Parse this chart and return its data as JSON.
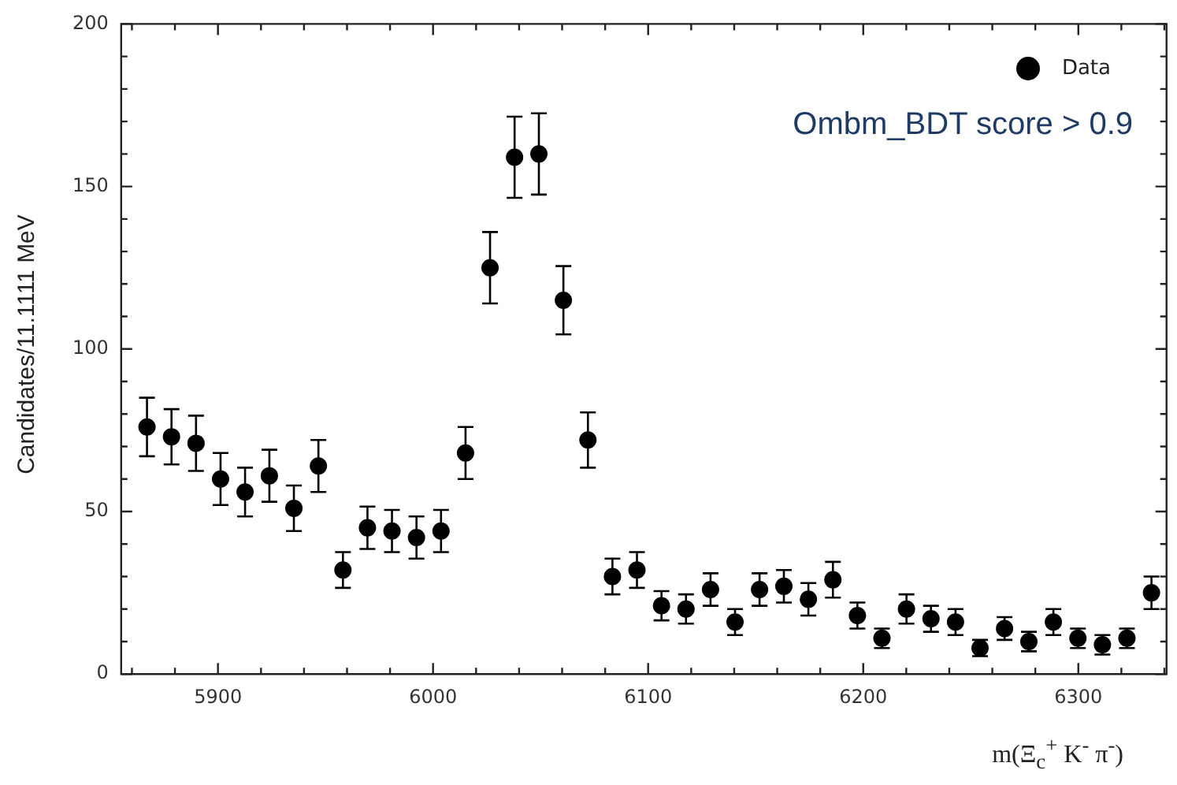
{
  "chart_data": {
    "type": "scatter",
    "xlabel": "m(Ξ$_{c}$$^{+}$ K$^{-}$ π$^{-}$)",
    "ylabel": "Candidates/11.1111 MeV",
    "annotations": [
      "Ombm_BDT score > 0.9"
    ],
    "x": [
      5867.0,
      5878.4,
      5889.8,
      5901.2,
      5912.6,
      5923.9,
      5935.3,
      5946.7,
      5958.1,
      5969.5,
      5980.9,
      5992.3,
      6003.7,
      6015.1,
      6026.5,
      6037.9,
      6049.2,
      6060.6,
      6072.0,
      6083.4,
      6094.8,
      6106.2,
      6117.6,
      6129.0,
      6140.4,
      6151.8,
      6163.1,
      6174.5,
      6185.9,
      6197.3,
      6208.7,
      6220.1,
      6231.5,
      6242.9,
      6254.3,
      6265.7,
      6277.0,
      6288.4,
      6299.8,
      6311.2,
      6322.6,
      6334.0
    ],
    "series": [
      {
        "name": "Data",
        "color": "#000000",
        "values": [
          76,
          73,
          71,
          60,
          56,
          61,
          51,
          64,
          32,
          45,
          44,
          42,
          44,
          68,
          125,
          159,
          160,
          115,
          72,
          30,
          32,
          21,
          20,
          26,
          16,
          26,
          27,
          23,
          29,
          18,
          11,
          20,
          17,
          16,
          8,
          14,
          10,
          16,
          11,
          9,
          11,
          25
        ],
        "errors": [
          9,
          8.5,
          8.5,
          8,
          7.5,
          8,
          7,
          8,
          5.5,
          6.5,
          6.5,
          6.5,
          6.5,
          8,
          11,
          12.5,
          12.5,
          10.5,
          8.5,
          5.5,
          5.5,
          4.5,
          4.5,
          5,
          4,
          5,
          5,
          5,
          5.5,
          4,
          3,
          4.5,
          4,
          4,
          2.5,
          3.5,
          3,
          4,
          3,
          3,
          3,
          5
        ]
      }
    ],
    "xlim": [
      5855,
      6341
    ],
    "ylim": [
      0,
      200
    ],
    "xticks": [
      {
        "value": 5860,
        "label": null
      },
      {
        "value": 5880,
        "label": null
      },
      5900,
      {
        "value": 5920,
        "label": null
      },
      {
        "value": 5940,
        "label": null
      },
      {
        "value": 5960,
        "label": null
      },
      {
        "value": 5980,
        "label": null
      },
      6000,
      {
        "value": 6020,
        "label": null
      },
      {
        "value": 6040,
        "label": null
      },
      {
        "value": 6060,
        "label": null
      },
      {
        "value": 6080,
        "label": null
      },
      6100,
      {
        "value": 6120,
        "label": null
      },
      {
        "value": 6140,
        "label": null
      },
      {
        "value": 6160,
        "label": null
      },
      {
        "value": 6180,
        "label": null
      },
      6200,
      {
        "value": 6220,
        "label": null
      },
      {
        "value": 6240,
        "label": null
      },
      {
        "value": 6260,
        "label": null
      },
      {
        "value": 6280,
        "label": null
      },
      6300,
      {
        "value": 6320,
        "label": null
      },
      {
        "value": 6340,
        "label": null
      }
    ],
    "yticks": [
      0,
      {
        "value": 10,
        "label": null
      },
      {
        "value": 20,
        "label": null
      },
      {
        "value": 30,
        "label": null
      },
      {
        "value": 40,
        "label": null
      },
      50,
      {
        "value": 60,
        "label": null
      },
      {
        "value": 70,
        "label": null
      },
      {
        "value": 80,
        "label": null
      },
      {
        "value": 90,
        "label": null
      },
      100,
      {
        "value": 110,
        "label": null
      },
      {
        "value": 120,
        "label": null
      },
      {
        "value": 130,
        "label": null
      },
      {
        "value": 140,
        "label": null
      },
      150,
      {
        "value": 160,
        "label": null
      },
      {
        "value": 170,
        "label": null
      },
      {
        "value": 180,
        "label": null
      },
      {
        "value": 190,
        "label": null
      },
      200
    ],
    "marker": "circle",
    "legend": "top right",
    "grid": false
  }
}
